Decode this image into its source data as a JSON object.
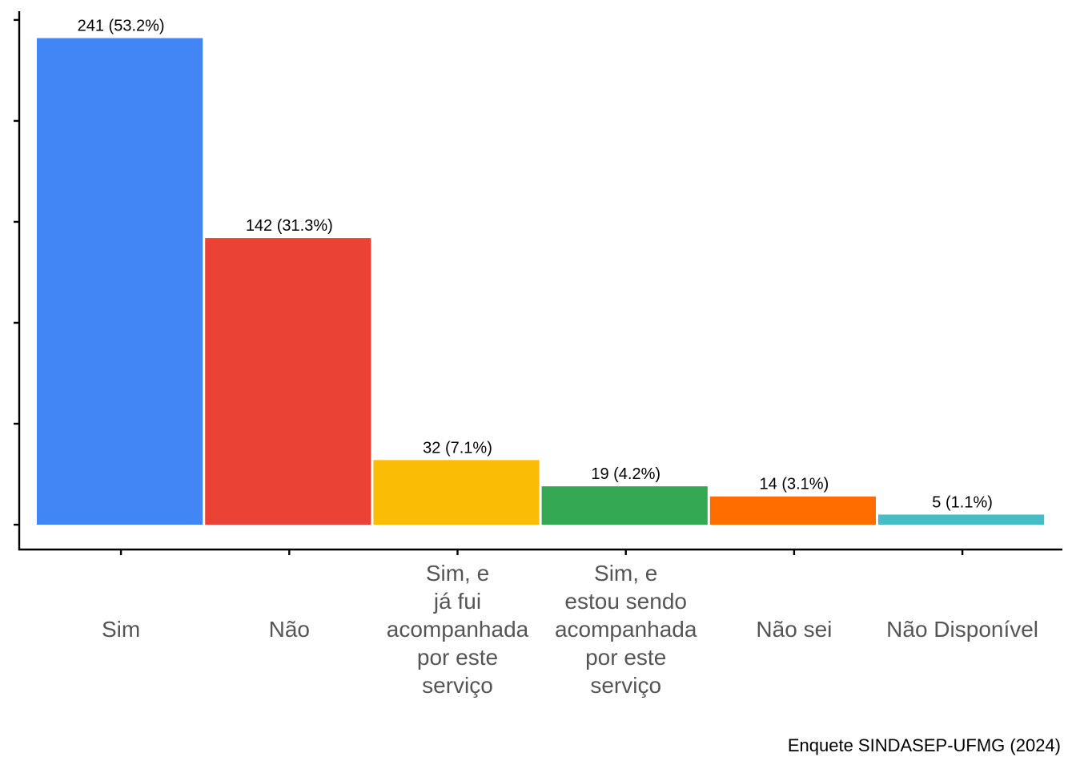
{
  "chart_data": {
    "type": "bar",
    "categories": [
      "Sim",
      "Não",
      "Sim, e já fui acompanhada por este serviço",
      "Sim, e estou sendo acompanhada por este serviço",
      "Não sei",
      "Não Disponível"
    ],
    "category_lines": [
      [
        "Sim"
      ],
      [
        "Não"
      ],
      [
        "Sim, e",
        "já fui",
        "acompanhada",
        "por este",
        "serviço"
      ],
      [
        "Sim, e",
        "estou sendo",
        "acompanhada",
        "por este",
        "serviço"
      ],
      [
        "Não sei"
      ],
      [
        "Não Disponível"
      ]
    ],
    "values": [
      241,
      142,
      32,
      19,
      14,
      5
    ],
    "data_labels": [
      "241 (53.2%)",
      "142 (31.3%)",
      "32 (7.1%)",
      "19 (4.2%)",
      "14 (3.1%)",
      "5 (1.1%)"
    ],
    "colors": [
      "#4285F4",
      "#EA4335",
      "#FBBC05",
      "#34A853",
      "#FF6D01",
      "#46BDC6"
    ],
    "title": "",
    "xlabel": "",
    "ylabel": "",
    "ylim": [
      0,
      250
    ],
    "grid": false,
    "legend": "none"
  },
  "caption": "Enquete SINDASEP-UFMG (2024)"
}
